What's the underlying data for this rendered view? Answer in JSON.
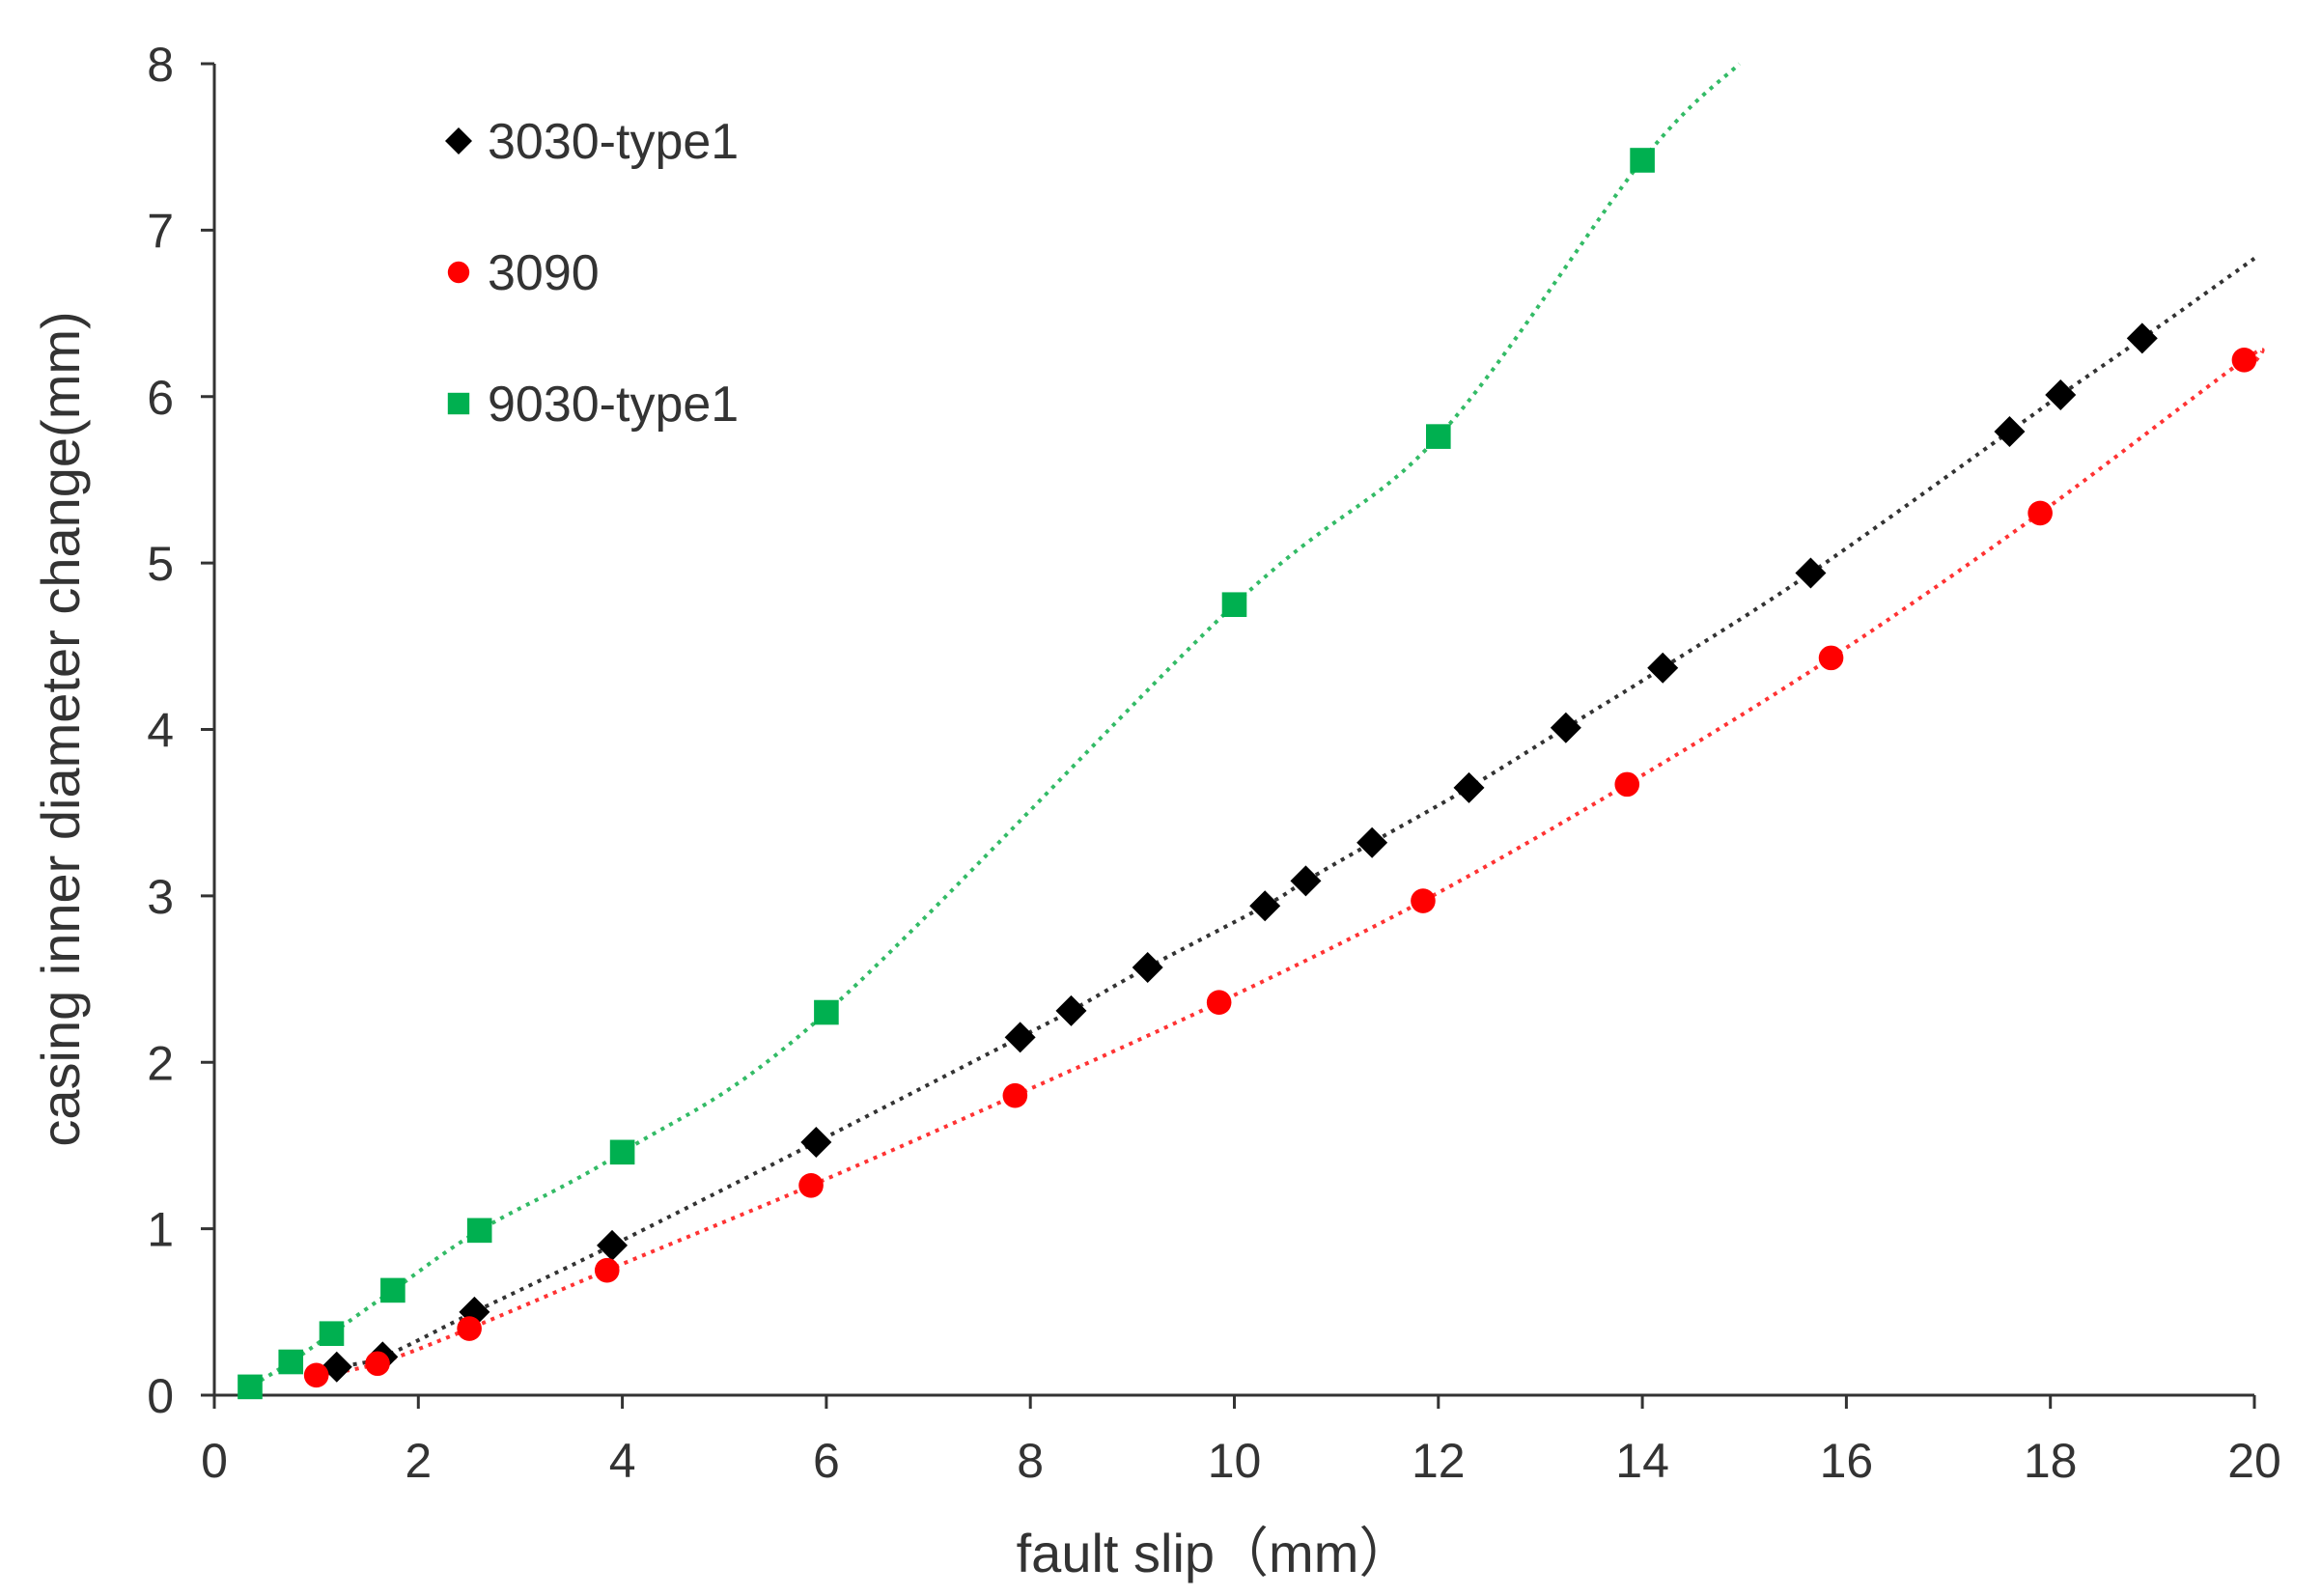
{
  "chart_data": {
    "type": "scatter",
    "title": "",
    "xlabel": "fault slip（mm）",
    "ylabel": "casing inner diameter change(mm)",
    "xlim": [
      0,
      20
    ],
    "ylim": [
      0,
      8
    ],
    "xticks": [
      0,
      2,
      4,
      6,
      8,
      10,
      12,
      14,
      16,
      18,
      20
    ],
    "yticks": [
      0,
      1,
      2,
      3,
      4,
      5,
      6,
      7,
      8
    ],
    "grid": false,
    "legend_position": "top-left",
    "series": [
      {
        "name": "3030-type1",
        "marker": "diamond",
        "color": "#000000",
        "trend_color": "#333333",
        "points": [
          [
            1.2,
            0.17
          ],
          [
            1.65,
            0.23
          ],
          [
            2.55,
            0.5
          ],
          [
            3.9,
            0.9
          ],
          [
            5.9,
            1.52
          ],
          [
            7.9,
            2.15
          ],
          [
            8.4,
            2.31
          ],
          [
            9.15,
            2.57
          ],
          [
            10.3,
            2.94
          ],
          [
            10.7,
            3.09
          ],
          [
            11.35,
            3.32
          ],
          [
            12.3,
            3.65
          ],
          [
            13.25,
            4.01
          ],
          [
            14.2,
            4.37
          ],
          [
            15.65,
            4.94
          ],
          [
            17.6,
            5.79
          ],
          [
            18.1,
            6.01
          ],
          [
            18.9,
            6.35
          ]
        ],
        "trendline": [
          [
            1.0,
            0.12
          ],
          [
            20.0,
            6.83
          ]
        ]
      },
      {
        "name": "3090",
        "marker": "circle",
        "color": "#ff0000",
        "trend_color": "#ff3333",
        "points": [
          [
            1.0,
            0.12
          ],
          [
            1.6,
            0.19
          ],
          [
            2.5,
            0.4
          ],
          [
            3.85,
            0.75
          ],
          [
            5.85,
            1.26
          ],
          [
            7.85,
            1.8
          ],
          [
            9.85,
            2.36
          ],
          [
            11.85,
            2.97
          ],
          [
            13.85,
            3.67
          ],
          [
            15.85,
            4.43
          ],
          [
            17.9,
            5.3
          ],
          [
            19.9,
            6.22
          ]
        ],
        "trendline": [
          [
            1.0,
            0.12
          ],
          [
            20.0,
            6.2
          ]
        ]
      },
      {
        "name": "9030-type1",
        "marker": "square",
        "color": "#00b050",
        "trend_color": "#33bb66",
        "points": [
          [
            0.35,
            0.05
          ],
          [
            0.75,
            0.2
          ],
          [
            1.15,
            0.37
          ],
          [
            1.75,
            0.63
          ],
          [
            2.6,
            0.99
          ],
          [
            4.0,
            1.46
          ],
          [
            6.0,
            2.3
          ],
          [
            10.0,
            4.75
          ],
          [
            12.0,
            5.76
          ],
          [
            14.0,
            7.42
          ]
        ],
        "trendline": [
          [
            0.35,
            0.05
          ],
          [
            14.95,
            8.0
          ]
        ]
      }
    ]
  }
}
